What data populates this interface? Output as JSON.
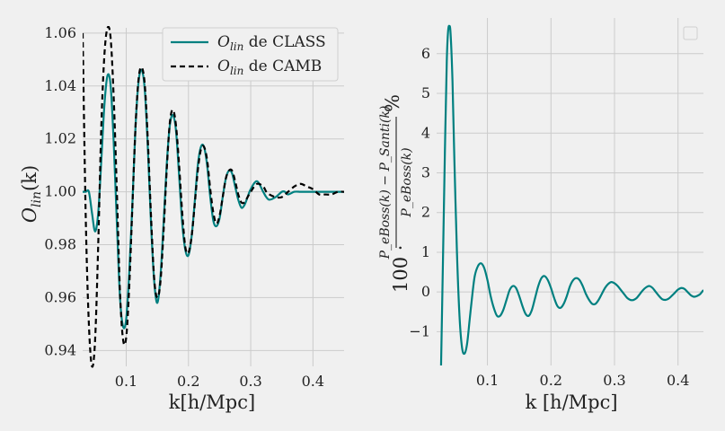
{
  "chart_data": [
    {
      "type": "line",
      "xlabel": "k[h/Mpc]",
      "ylabel": "O_lin(k)",
      "ylabel_parts": {
        "main": "O",
        "sub": "lin",
        "arg": "(k)"
      },
      "xlim": [
        0.03,
        0.45
      ],
      "ylim": [
        0.934,
        1.062
      ],
      "xticks": [
        0.1,
        0.2,
        0.3,
        0.4
      ],
      "xtick_labels": [
        "0.1",
        "0.2",
        "0.3",
        "0.4"
      ],
      "yticks": [
        0.94,
        0.96,
        0.98,
        1.0,
        1.02,
        1.04,
        1.06
      ],
      "ytick_labels": [
        "0.94",
        "0.96",
        "0.98",
        "1.00",
        "1.02",
        "1.04",
        "1.06"
      ],
      "grid": true,
      "legend_position": "top-right",
      "series": [
        {
          "legend_parts": {
            "main": "O",
            "sub": "lin",
            "rest": " de CLASS"
          },
          "color": "#008080",
          "style": "solid",
          "x": [
            0.03,
            0.035,
            0.04,
            0.045,
            0.05,
            0.055,
            0.06,
            0.065,
            0.07,
            0.075,
            0.08,
            0.085,
            0.09,
            0.095,
            0.1,
            0.105,
            0.11,
            0.115,
            0.12,
            0.125,
            0.13,
            0.135,
            0.14,
            0.145,
            0.15,
            0.155,
            0.16,
            0.165,
            0.17,
            0.175,
            0.18,
            0.185,
            0.19,
            0.195,
            0.2,
            0.205,
            0.21,
            0.215,
            0.22,
            0.225,
            0.23,
            0.235,
            0.24,
            0.245,
            0.25,
            0.255,
            0.26,
            0.265,
            0.27,
            0.275,
            0.28,
            0.285,
            0.29,
            0.295,
            0.3,
            0.31,
            0.32,
            0.325,
            0.33,
            0.34,
            0.35,
            0.355,
            0.36,
            0.37,
            0.38,
            0.39,
            0.4,
            0.41,
            0.42,
            0.43,
            0.44,
            0.45
          ],
          "y": [
            1.0,
            1.0,
            1.0,
            0.992,
            0.985,
            0.992,
            1.012,
            1.033,
            1.044,
            1.04,
            1.018,
            0.988,
            0.96,
            0.949,
            0.952,
            0.97,
            0.996,
            1.025,
            1.042,
            1.046,
            1.038,
            1.015,
            0.987,
            0.966,
            0.958,
            0.968,
            0.988,
            1.01,
            1.025,
            1.029,
            1.023,
            1.006,
            0.988,
            0.978,
            0.976,
            0.983,
            0.996,
            1.01,
            1.017,
            1.017,
            1.01,
            0.998,
            0.989,
            0.987,
            0.99,
            0.998,
            1.005,
            1.008,
            1.007,
            1.002,
            0.997,
            0.994,
            0.995,
            0.998,
            1.001,
            1.004,
            1.0,
            0.998,
            0.997,
            0.998,
            1.0,
            1.0,
            0.999,
            1.0,
            1.0,
            1.0,
            1.0,
            1.0,
            1.0,
            1.0,
            1.0,
            1.0
          ]
        },
        {
          "legend_parts": {
            "main": "O",
            "sub": "lin",
            "rest": " de CAMB"
          },
          "color": "#000000",
          "style": "dashed",
          "x": [
            0.03,
            0.035,
            0.04,
            0.045,
            0.05,
            0.055,
            0.06,
            0.065,
            0.07,
            0.075,
            0.08,
            0.085,
            0.09,
            0.095,
            0.1,
            0.105,
            0.11,
            0.115,
            0.12,
            0.125,
            0.13,
            0.135,
            0.14,
            0.145,
            0.15,
            0.155,
            0.16,
            0.165,
            0.17,
            0.175,
            0.18,
            0.185,
            0.19,
            0.195,
            0.2,
            0.205,
            0.21,
            0.215,
            0.22,
            0.225,
            0.23,
            0.235,
            0.24,
            0.245,
            0.25,
            0.255,
            0.26,
            0.265,
            0.27,
            0.275,
            0.28,
            0.285,
            0.29,
            0.295,
            0.3,
            0.31,
            0.32,
            0.325,
            0.33,
            0.34,
            0.35,
            0.36,
            0.37,
            0.38,
            0.39,
            0.4,
            0.41,
            0.42,
            0.43,
            0.44,
            0.45
          ],
          "y": [
            1.06,
            0.99,
            0.95,
            0.934,
            0.944,
            0.98,
            1.025,
            1.052,
            1.062,
            1.058,
            1.035,
            1.0,
            0.962,
            0.944,
            0.945,
            0.965,
            0.995,
            1.025,
            1.043,
            1.047,
            1.04,
            1.018,
            0.99,
            0.967,
            0.96,
            0.966,
            0.985,
            1.008,
            1.026,
            1.031,
            1.025,
            1.01,
            0.992,
            0.979,
            0.977,
            0.983,
            0.995,
            1.008,
            1.016,
            1.017,
            1.012,
            1.001,
            0.992,
            0.988,
            0.991,
            0.998,
            1.005,
            1.008,
            1.008,
            1.004,
            0.999,
            0.996,
            0.996,
            0.998,
            1.0,
            1.003,
            1.002,
            1.0,
            0.999,
            0.998,
            0.998,
            1.0,
            1.002,
            1.003,
            1.002,
            1.001,
            0.999,
            0.999,
            0.999,
            1.0,
            1.0
          ]
        }
      ]
    },
    {
      "type": "line",
      "xlabel": "k [h/Mpc]",
      "ylabel_parts": {
        "prefix": "100 ·",
        "numerator": "P_eBoss(k) − P_Santi(k)",
        "denominator": "P_eBoss(k)",
        "suffix": "%"
      },
      "xlim": [
        0.02,
        0.44
      ],
      "ylim": [
        -1.85,
        6.9
      ],
      "xticks": [
        0.1,
        0.2,
        0.3,
        0.4
      ],
      "xtick_labels": [
        "0.1",
        "0.2",
        "0.3",
        "0.4"
      ],
      "yticks": [
        -1,
        0,
        1,
        2,
        3,
        4,
        5,
        6
      ],
      "ytick_labels": [
        "−1",
        "0",
        "1",
        "2",
        "3",
        "4",
        "5",
        "6"
      ],
      "grid": true,
      "legend_position": "top-right",
      "legend_empty": true,
      "series": [
        {
          "color": "#008080",
          "style": "solid",
          "x": [
            0.027,
            0.03,
            0.033,
            0.036,
            0.038,
            0.04,
            0.042,
            0.045,
            0.048,
            0.052,
            0.056,
            0.06,
            0.064,
            0.068,
            0.072,
            0.076,
            0.08,
            0.085,
            0.09,
            0.095,
            0.1,
            0.105,
            0.11,
            0.115,
            0.12,
            0.125,
            0.13,
            0.135,
            0.14,
            0.145,
            0.15,
            0.155,
            0.16,
            0.165,
            0.17,
            0.175,
            0.18,
            0.185,
            0.19,
            0.195,
            0.2,
            0.205,
            0.21,
            0.215,
            0.22,
            0.225,
            0.23,
            0.235,
            0.24,
            0.245,
            0.25,
            0.255,
            0.26,
            0.265,
            0.27,
            0.275,
            0.28,
            0.285,
            0.29,
            0.295,
            0.3,
            0.305,
            0.31,
            0.315,
            0.32,
            0.325,
            0.33,
            0.335,
            0.34,
            0.345,
            0.35,
            0.355,
            0.36,
            0.365,
            0.37,
            0.375,
            0.38,
            0.385,
            0.39,
            0.395,
            0.4,
            0.405,
            0.41,
            0.415,
            0.42,
            0.425,
            0.43,
            0.435,
            0.44
          ],
          "y": [
            -1.85,
            0.8,
            3.5,
            5.8,
            6.55,
            6.7,
            6.5,
            5.3,
            3.3,
            1.0,
            -0.6,
            -1.4,
            -1.55,
            -1.3,
            -0.7,
            -0.1,
            0.4,
            0.65,
            0.72,
            0.6,
            0.3,
            -0.1,
            -0.4,
            -0.6,
            -0.6,
            -0.45,
            -0.2,
            0.05,
            0.15,
            0.1,
            -0.1,
            -0.35,
            -0.55,
            -0.6,
            -0.45,
            -0.15,
            0.15,
            0.35,
            0.4,
            0.3,
            0.1,
            -0.15,
            -0.35,
            -0.4,
            -0.3,
            -0.1,
            0.15,
            0.3,
            0.35,
            0.3,
            0.15,
            -0.05,
            -0.2,
            -0.3,
            -0.3,
            -0.2,
            -0.05,
            0.1,
            0.2,
            0.25,
            0.22,
            0.15,
            0.05,
            -0.05,
            -0.15,
            -0.2,
            -0.2,
            -0.15,
            -0.05,
            0.05,
            0.12,
            0.15,
            0.1,
            0.0,
            -0.1,
            -0.18,
            -0.2,
            -0.17,
            -0.1,
            -0.02,
            0.06,
            0.1,
            0.08,
            0.0,
            -0.08,
            -0.12,
            -0.1,
            -0.05,
            0.05
          ]
        }
      ]
    }
  ]
}
